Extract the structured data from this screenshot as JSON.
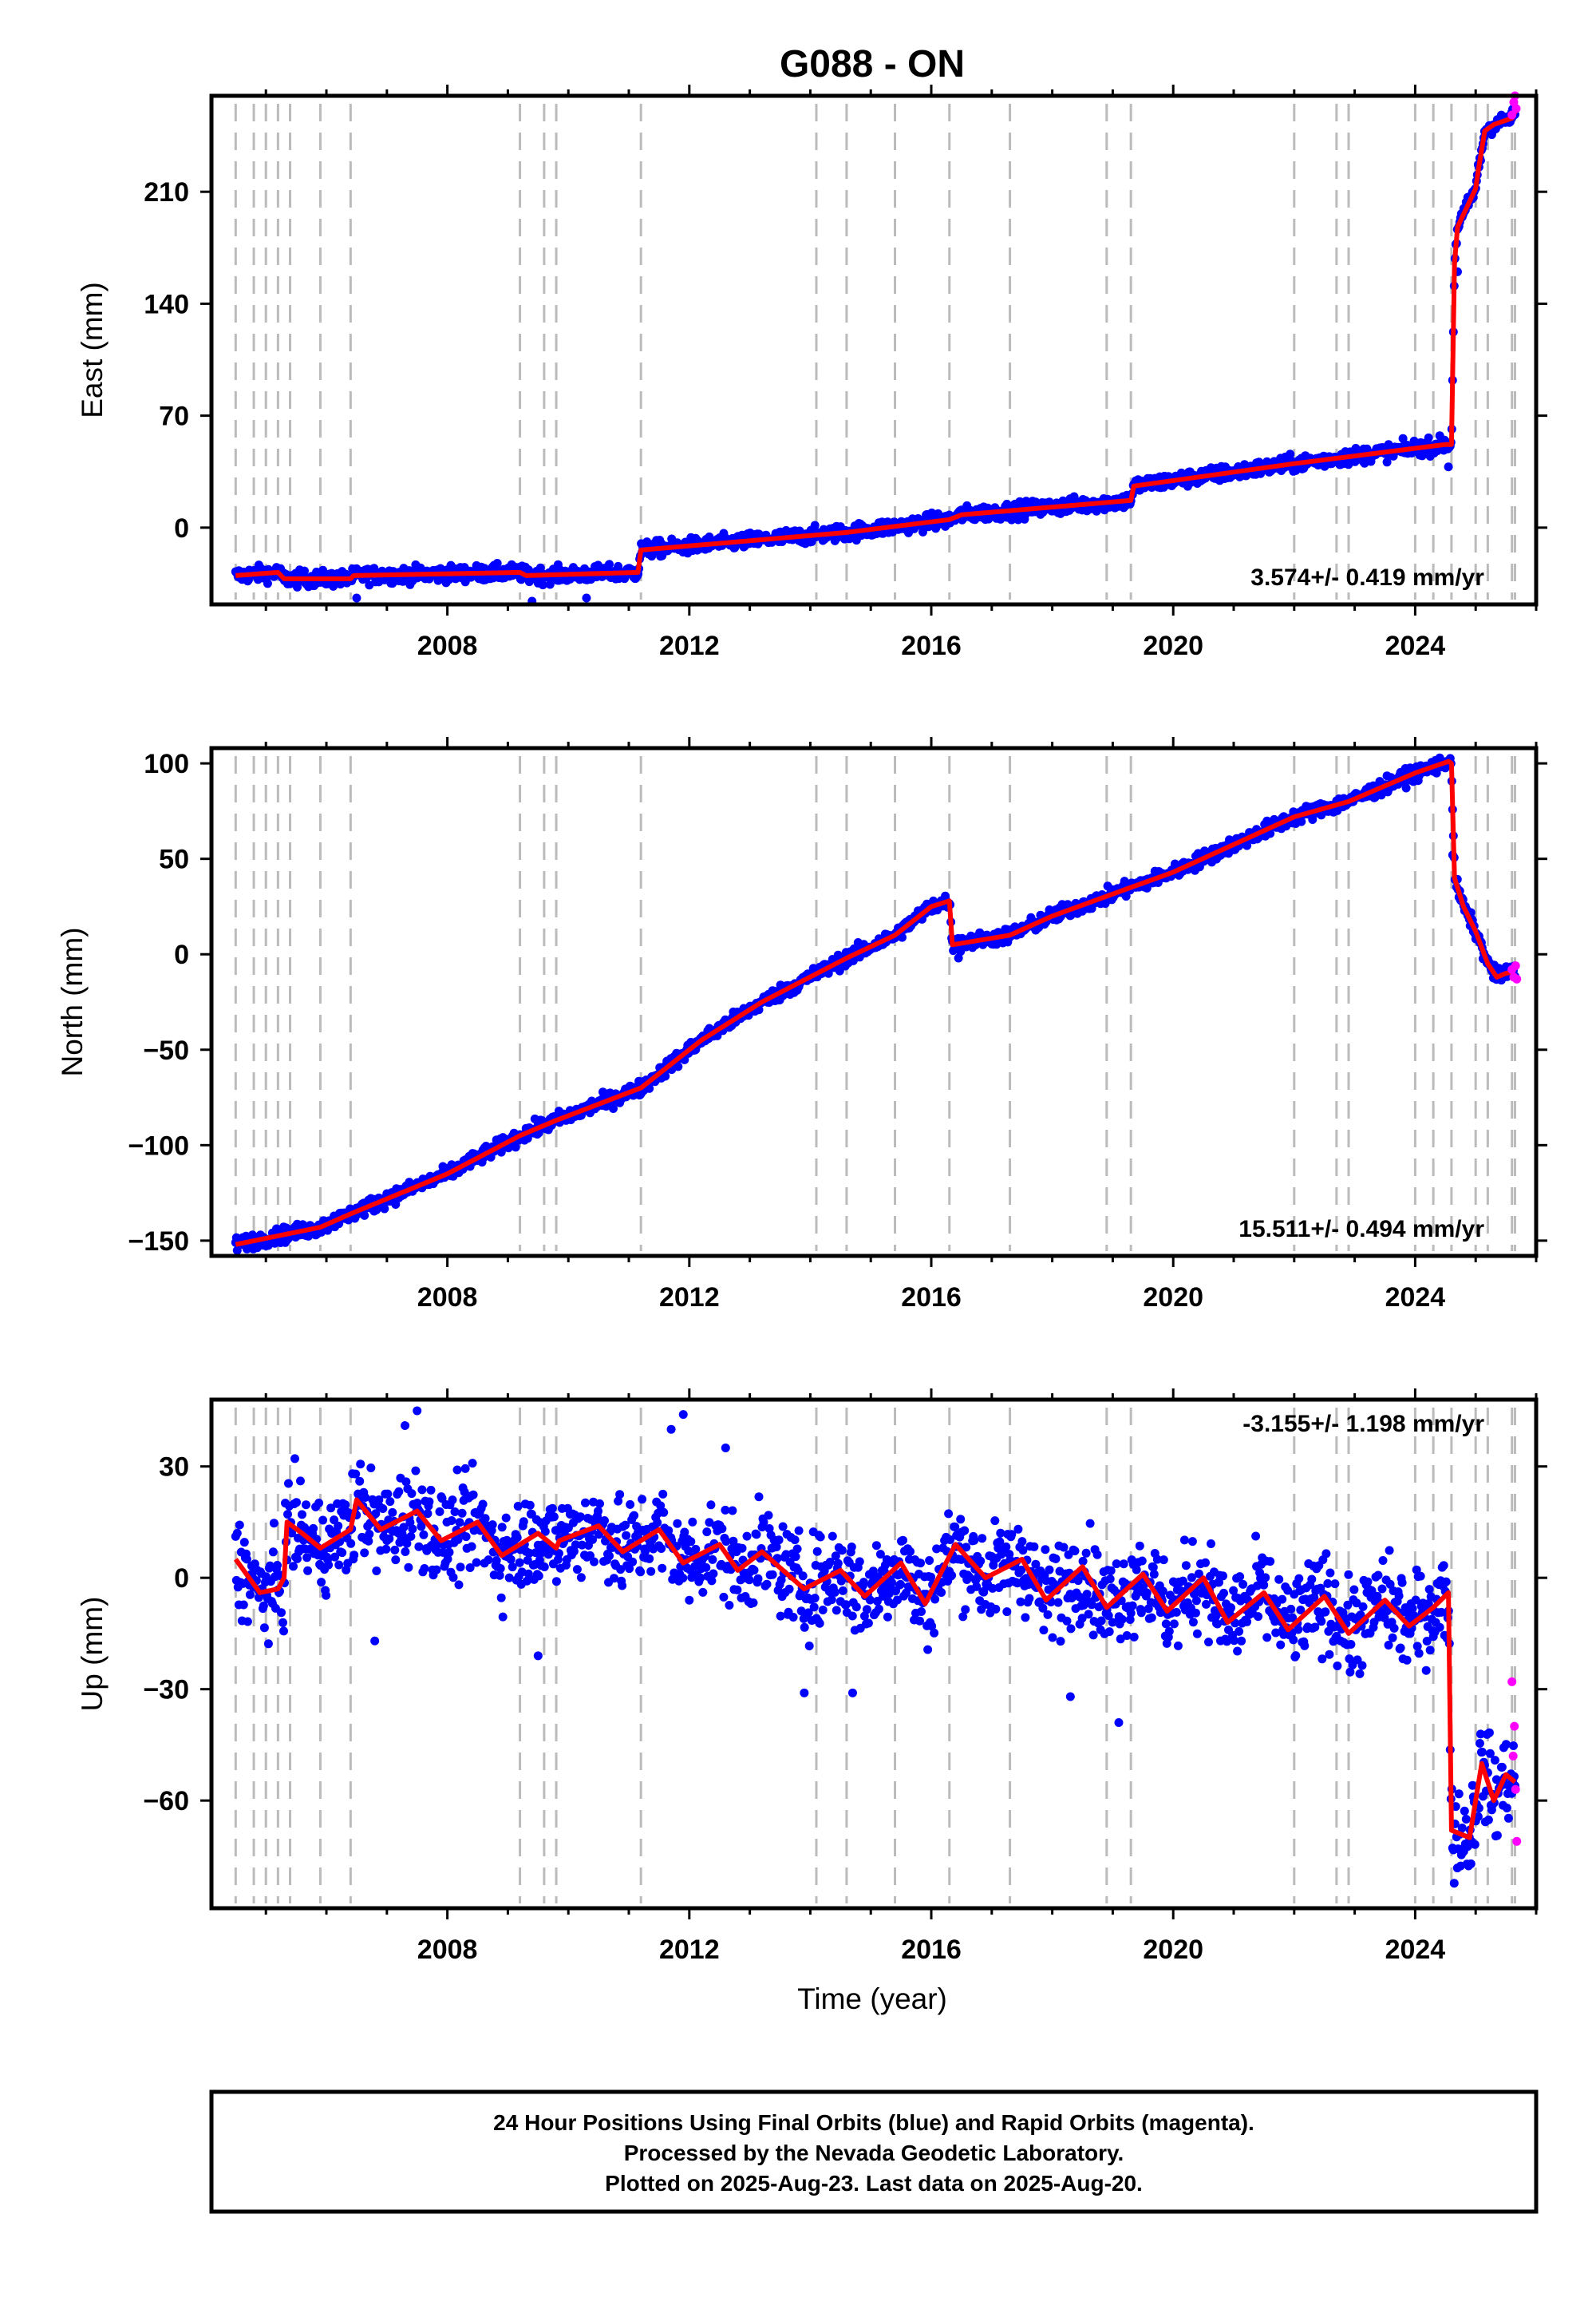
{
  "title": "G088 - ON",
  "xlabel": "Time (year)",
  "colors": {
    "final": "#0000ff",
    "rapid": "#ff00ff",
    "model": "#ff0000",
    "event": "#bbbbbb",
    "frame": "#000000"
  },
  "footer": {
    "line1": "24 Hour Positions Using Final Orbits (blue) and Rapid Orbits (magenta).",
    "line2": "Processed by the Nevada Geodetic Laboratory.",
    "line3": "Plotted on 2025-Aug-23. Last data on 2025-Aug-20."
  },
  "chart_data": [
    {
      "type": "scatter",
      "ylabel": "East (mm)",
      "rate_text": "3.574+/- 0.419 mm/yr",
      "xlim": [
        2004.1,
        2026.0
      ],
      "ylim": [
        -48,
        270
      ],
      "xticks": [
        2008,
        2012,
        2016,
        2020,
        2024
      ],
      "xtick_labels": [
        "2008",
        "2012",
        "2016",
        "2020",
        "2024"
      ],
      "yticks": [
        0,
        70,
        140,
        210
      ],
      "ytick_labels": [
        "0",
        "70",
        "140",
        "210"
      ],
      "events": [
        2004.5,
        2004.8,
        2005.0,
        2005.2,
        2005.4,
        2005.9,
        2006.4,
        2009.2,
        2009.6,
        2009.8,
        2011.2,
        2014.1,
        2014.6,
        2015.4,
        2016.3,
        2017.3,
        2018.9,
        2019.3,
        2022.0,
        2022.7,
        2022.9,
        2024.0,
        2024.3,
        2024.6,
        2025.0,
        2025.2,
        2025.6,
        2025.65
      ],
      "model": [
        [
          2004.5,
          -30
        ],
        [
          2005.2,
          -28
        ],
        [
          2005.3,
          -32
        ],
        [
          2006.4,
          -32
        ],
        [
          2006.45,
          -30
        ],
        [
          2009.2,
          -28
        ],
        [
          2009.3,
          -30
        ],
        [
          2011.15,
          -28
        ],
        [
          2011.2,
          -14
        ],
        [
          2014.6,
          -3
        ],
        [
          2016.3,
          5
        ],
        [
          2016.5,
          8
        ],
        [
          2019.3,
          17
        ],
        [
          2019.35,
          26
        ],
        [
          2022.0,
          40
        ],
        [
          2024.5,
          52
        ],
        [
          2024.6,
          52
        ],
        [
          2024.65,
          165
        ],
        [
          2024.7,
          188
        ],
        [
          2025.0,
          212
        ],
        [
          2025.05,
          225
        ],
        [
          2025.15,
          248
        ],
        [
          2025.3,
          252
        ],
        [
          2025.6,
          256
        ],
        [
          2025.65,
          260
        ]
      ],
      "noise": 3.5,
      "rapid": [
        [
          2025.6,
          258
        ],
        [
          2025.63,
          266
        ],
        [
          2025.65,
          270
        ],
        [
          2025.67,
          262
        ]
      ],
      "outliers": [
        [
          2009.4,
          -46
        ],
        [
          2010.3,
          -44
        ],
        [
          2006.5,
          -44
        ],
        [
          2024.7,
          160
        ],
        [
          2024.55,
          38
        ]
      ]
    },
    {
      "type": "scatter",
      "ylabel": "North (mm)",
      "rate_text": "15.511+/- 0.494 mm/yr",
      "xlim": [
        2004.1,
        2026.0
      ],
      "ylim": [
        -158,
        108
      ],
      "xticks": [
        2008,
        2012,
        2016,
        2020,
        2024
      ],
      "xtick_labels": [
        "2008",
        "2012",
        "2016",
        "2020",
        "2024"
      ],
      "yticks": [
        -150,
        -100,
        -50,
        0,
        50,
        100
      ],
      "ytick_labels": [
        "−150",
        "−100",
        "−50",
        "0",
        "50",
        "100"
      ],
      "events": [
        2004.5,
        2004.8,
        2005.0,
        2005.2,
        2005.4,
        2005.9,
        2006.4,
        2009.2,
        2009.6,
        2009.8,
        2011.2,
        2014.1,
        2014.6,
        2015.4,
        2016.3,
        2017.3,
        2018.9,
        2019.3,
        2022.0,
        2022.7,
        2022.9,
        2024.0,
        2024.3,
        2024.6,
        2025.0,
        2025.2,
        2025.6,
        2025.65
      ],
      "model": [
        [
          2004.5,
          -152
        ],
        [
          2005.9,
          -143
        ],
        [
          2006.4,
          -136
        ],
        [
          2008.0,
          -115
        ],
        [
          2009.2,
          -95
        ],
        [
          2009.8,
          -87
        ],
        [
          2011.2,
          -70
        ],
        [
          2012.2,
          -45
        ],
        [
          2012.7,
          -35
        ],
        [
          2013.2,
          -25
        ],
        [
          2014.6,
          -2
        ],
        [
          2015.4,
          10
        ],
        [
          2016.0,
          25
        ],
        [
          2016.3,
          28
        ],
        [
          2016.35,
          5
        ],
        [
          2017.3,
          10
        ],
        [
          2018.0,
          20
        ],
        [
          2019.3,
          35
        ],
        [
          2020.0,
          43
        ],
        [
          2022.0,
          72
        ],
        [
          2022.9,
          80
        ],
        [
          2024.0,
          95
        ],
        [
          2024.55,
          101
        ],
        [
          2024.6,
          100
        ],
        [
          2024.65,
          40
        ],
        [
          2024.8,
          25
        ],
        [
          2025.0,
          12
        ],
        [
          2025.2,
          -5
        ],
        [
          2025.35,
          -12
        ],
        [
          2025.5,
          -10
        ],
        [
          2025.65,
          -9
        ]
      ],
      "noise": 2.8,
      "rapid": [
        [
          2025.6,
          -8
        ],
        [
          2025.63,
          -12
        ],
        [
          2025.66,
          -6
        ],
        [
          2025.68,
          -13
        ]
      ],
      "outliers": [
        [
          2024.62,
          52
        ],
        [
          2016.45,
          -2
        ]
      ]
    },
    {
      "type": "scatter",
      "ylabel": "Up (mm)",
      "rate_text": "-3.155+/- 1.198 mm/yr",
      "xlim": [
        2004.1,
        2026.0
      ],
      "ylim": [
        -89,
        48
      ],
      "xticks": [
        2008,
        2012,
        2016,
        2020,
        2024
      ],
      "xtick_labels": [
        "2008",
        "2012",
        "2016",
        "2020",
        "2024"
      ],
      "yticks": [
        -60,
        -30,
        0,
        30
      ],
      "ytick_labels": [
        "−60",
        "−30",
        "0",
        "30"
      ],
      "events": [
        2004.5,
        2004.8,
        2005.0,
        2005.2,
        2005.4,
        2005.9,
        2006.4,
        2009.2,
        2009.6,
        2009.8,
        2011.2,
        2014.1,
        2014.6,
        2015.4,
        2016.3,
        2017.3,
        2018.9,
        2019.3,
        2022.0,
        2022.7,
        2022.9,
        2024.0,
        2024.3,
        2024.6,
        2025.0,
        2025.2,
        2025.6,
        2025.65
      ],
      "model": [
        [
          2004.5,
          5
        ],
        [
          2004.9,
          -4
        ],
        [
          2005.2,
          -3
        ],
        [
          2005.3,
          0
        ],
        [
          2005.35,
          15
        ],
        [
          2005.6,
          12
        ],
        [
          2005.9,
          8
        ],
        [
          2006.1,
          10
        ],
        [
          2006.4,
          13
        ],
        [
          2006.5,
          21
        ],
        [
          2006.9,
          13
        ],
        [
          2007.5,
          18
        ],
        [
          2007.9,
          10
        ],
        [
          2008.5,
          15
        ],
        [
          2008.9,
          6
        ],
        [
          2009.5,
          12
        ],
        [
          2009.8,
          8
        ],
        [
          2009.85,
          10
        ],
        [
          2010.5,
          14
        ],
        [
          2010.9,
          7
        ],
        [
          2011.5,
          13
        ],
        [
          2011.9,
          4
        ],
        [
          2012.5,
          9
        ],
        [
          2012.8,
          2
        ],
        [
          2013.2,
          7
        ],
        [
          2013.9,
          -3
        ],
        [
          2014.5,
          2
        ],
        [
          2014.9,
          -5
        ],
        [
          2015.5,
          4
        ],
        [
          2015.9,
          -7
        ],
        [
          2016.4,
          9
        ],
        [
          2016.9,
          0
        ],
        [
          2017.5,
          5
        ],
        [
          2017.9,
          -6
        ],
        [
          2018.5,
          3
        ],
        [
          2018.9,
          -8
        ],
        [
          2019.5,
          1
        ],
        [
          2019.9,
          -9
        ],
        [
          2020.5,
          0
        ],
        [
          2020.9,
          -12
        ],
        [
          2021.5,
          -4
        ],
        [
          2021.9,
          -14
        ],
        [
          2022.5,
          -5
        ],
        [
          2022.9,
          -15
        ],
        [
          2023.5,
          -6
        ],
        [
          2023.9,
          -13
        ],
        [
          2024.3,
          -8
        ],
        [
          2024.55,
          -4
        ],
        [
          2024.6,
          -68
        ],
        [
          2024.9,
          -70
        ],
        [
          2025.1,
          -50
        ],
        [
          2025.3,
          -60
        ],
        [
          2025.5,
          -53
        ],
        [
          2025.65,
          -55
        ]
      ],
      "noise": 9,
      "rapid": [
        [
          2025.6,
          -28
        ],
        [
          2025.62,
          -48
        ],
        [
          2025.64,
          -40
        ],
        [
          2025.66,
          -57
        ],
        [
          2025.68,
          -71
        ]
      ],
      "outliers": [
        [
          2007.5,
          45
        ],
        [
          2007.3,
          41
        ],
        [
          2011.9,
          44
        ],
        [
          2011.7,
          40
        ],
        [
          2012.6,
          35
        ],
        [
          2019.1,
          -39
        ],
        [
          2018.3,
          -32
        ],
        [
          2006.8,
          -17
        ],
        [
          2009.5,
          -21
        ],
        [
          2014.7,
          -31
        ],
        [
          2013.9,
          -31
        ]
      ]
    }
  ]
}
